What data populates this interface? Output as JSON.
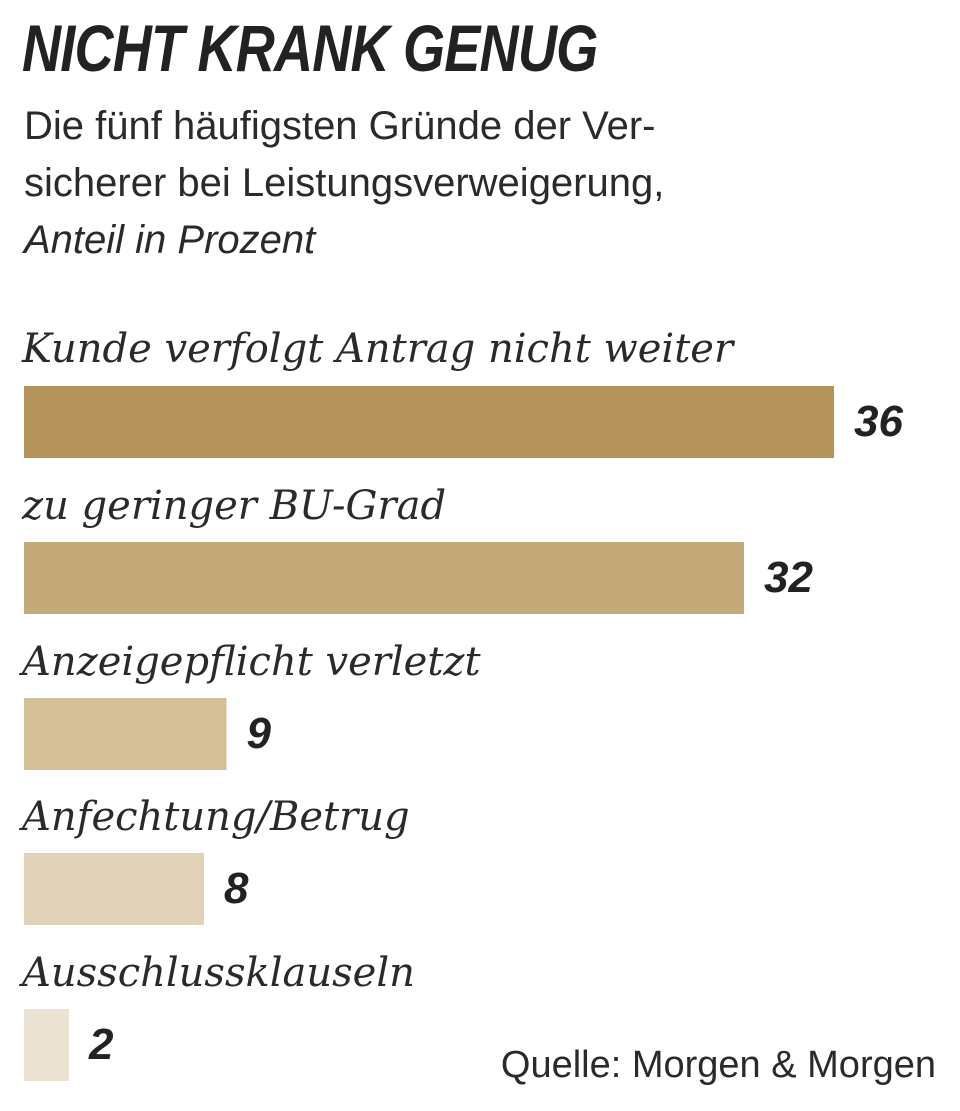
{
  "chart_data": {
    "type": "bar",
    "orientation": "horizontal",
    "title": "NICHT KRANK GENUG",
    "subtitle_lines": [
      "Die fünf häufigsten Gründe der Ver-",
      "sicherer bei Leistungsverweigerung,"
    ],
    "unit_label": "Anteil in Prozent",
    "categories": [
      "Kunde verfolgt Antrag nicht weiter",
      "zu geringer BU-Grad",
      "Anzeigepflicht verletzt",
      "Anfechtung/Betrug",
      "Ausschlussklauseln"
    ],
    "values": [
      36,
      32,
      9,
      8,
      2
    ],
    "value_labels": [
      "36",
      "32",
      "9",
      "8",
      "2"
    ],
    "bar_colors": [
      "#b4945a",
      "#c4aa78",
      "#d3bf98",
      "#e2d3b8",
      "#ece2d2"
    ],
    "xlim": [
      0,
      36
    ],
    "source": "Quelle: Morgen & Morgen"
  }
}
